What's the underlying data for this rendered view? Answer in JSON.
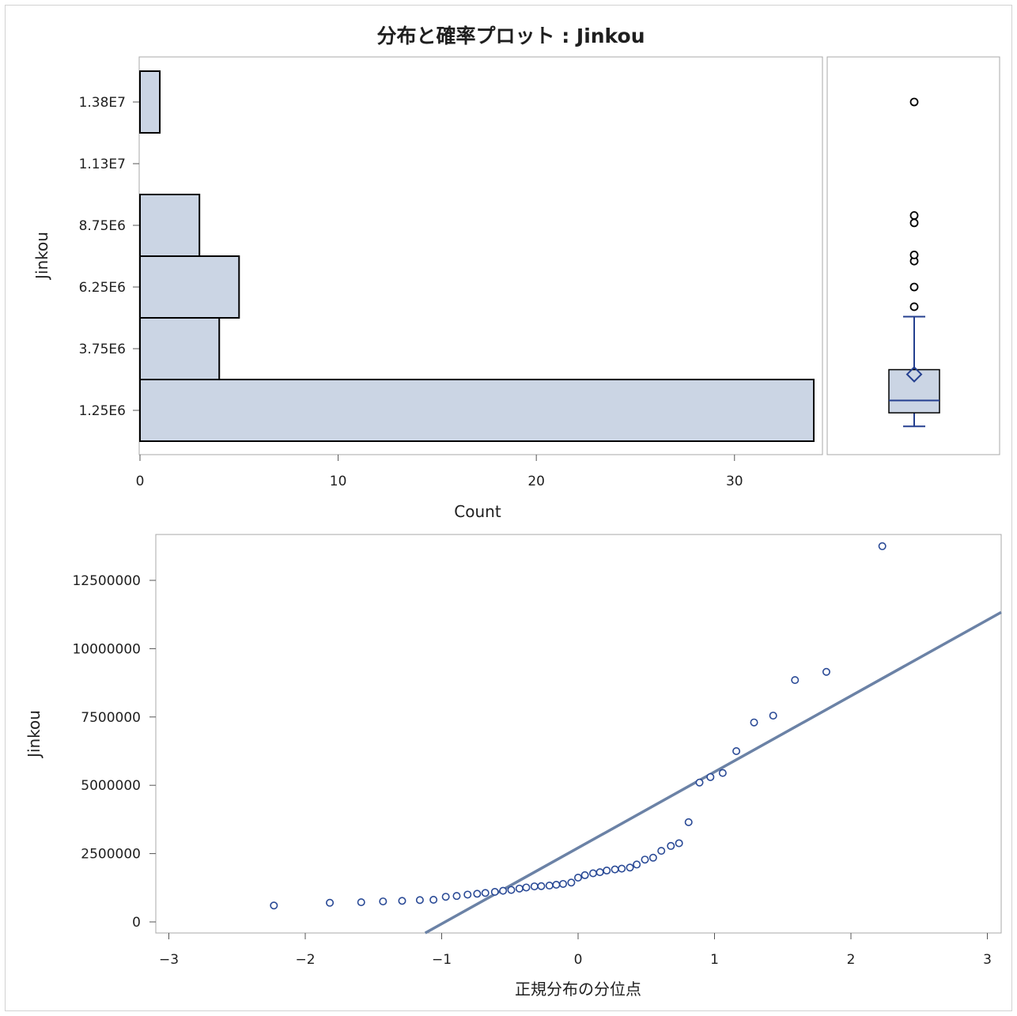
{
  "title": "分布と確率プロット : Jinkou",
  "colors": {
    "bar_fill": "#cbd5e4",
    "bar_stroke": "#000000",
    "box_stroke": "#243f8f",
    "marker": "#2a4a96",
    "fit_line": "#6b82a6",
    "frame": "#a8a8a8"
  },
  "chart_data": [
    {
      "type": "bar",
      "orientation": "horizontal",
      "title": "分布と確率プロット : Jinkou",
      "xlabel": "Count",
      "ylabel": "Jinkou",
      "bin_width": 2500000,
      "bin_midpoints": [
        1250000,
        3750000,
        6250000,
        8750000,
        11250000,
        13750000
      ],
      "values": [
        34,
        4,
        5,
        3,
        0,
        1
      ],
      "ytick_labels": [
        "1.25E6",
        "3.75E6",
        "6.25E6",
        "8.75E6",
        "1.13E7",
        "1.38E7"
      ],
      "xticks": [
        0,
        10,
        20,
        30
      ],
      "xlim": [
        0,
        34.5
      ],
      "ylim": [
        0,
        15000000
      ],
      "grid": false
    },
    {
      "type": "box",
      "ylabel": "Jinkou",
      "ylim": [
        0,
        15000000
      ],
      "whisker_low": 600000,
      "q1": 1150000,
      "median": 1650000,
      "q3": 2900000,
      "whisker_high": 5050000,
      "mean": 2710000,
      "outliers": [
        5450000,
        6250000,
        7300000,
        7550000,
        8850000,
        9150000,
        13750000
      ]
    },
    {
      "type": "scatter",
      "xlabel": "正規分布の分位点",
      "ylabel": "Jinkou",
      "xlim": [
        -3.05,
        3.05
      ],
      "ylim": [
        -250000,
        14200000
      ],
      "xticks": [
        -3,
        -2,
        -1,
        0,
        1,
        2,
        3
      ],
      "yticks": [
        0,
        2500000,
        5000000,
        7500000,
        10000000,
        12500000
      ],
      "reference_line": {
        "intercept": 2710000,
        "slope": 2780000
      },
      "grid": false,
      "x": [
        -2.23,
        -1.82,
        -1.59,
        -1.43,
        -1.29,
        -1.16,
        -1.06,
        -0.97,
        -0.89,
        -0.81,
        -0.74,
        -0.68,
        -0.61,
        -0.55,
        -0.49,
        -0.43,
        -0.38,
        -0.32,
        -0.27,
        -0.21,
        -0.16,
        -0.11,
        -0.05,
        0,
        0.05,
        0.11,
        0.16,
        0.21,
        0.27,
        0.32,
        0.38,
        0.43,
        0.49,
        0.55,
        0.61,
        0.68,
        0.74,
        0.81,
        0.89,
        0.97,
        1.06,
        1.16,
        1.29,
        1.43,
        1.59,
        1.82,
        2.23
      ],
      "y": [
        600000,
        700000,
        720000,
        750000,
        770000,
        800000,
        810000,
        920000,
        950000,
        1000000,
        1030000,
        1060000,
        1100000,
        1140000,
        1170000,
        1220000,
        1260000,
        1300000,
        1310000,
        1330000,
        1360000,
        1390000,
        1440000,
        1620000,
        1710000,
        1780000,
        1820000,
        1880000,
        1920000,
        1950000,
        1990000,
        2100000,
        2280000,
        2350000,
        2600000,
        2780000,
        2880000,
        3650000,
        5100000,
        5300000,
        5450000,
        6250000,
        7300000,
        7550000,
        8850000,
        9150000,
        13750000
      ]
    }
  ]
}
